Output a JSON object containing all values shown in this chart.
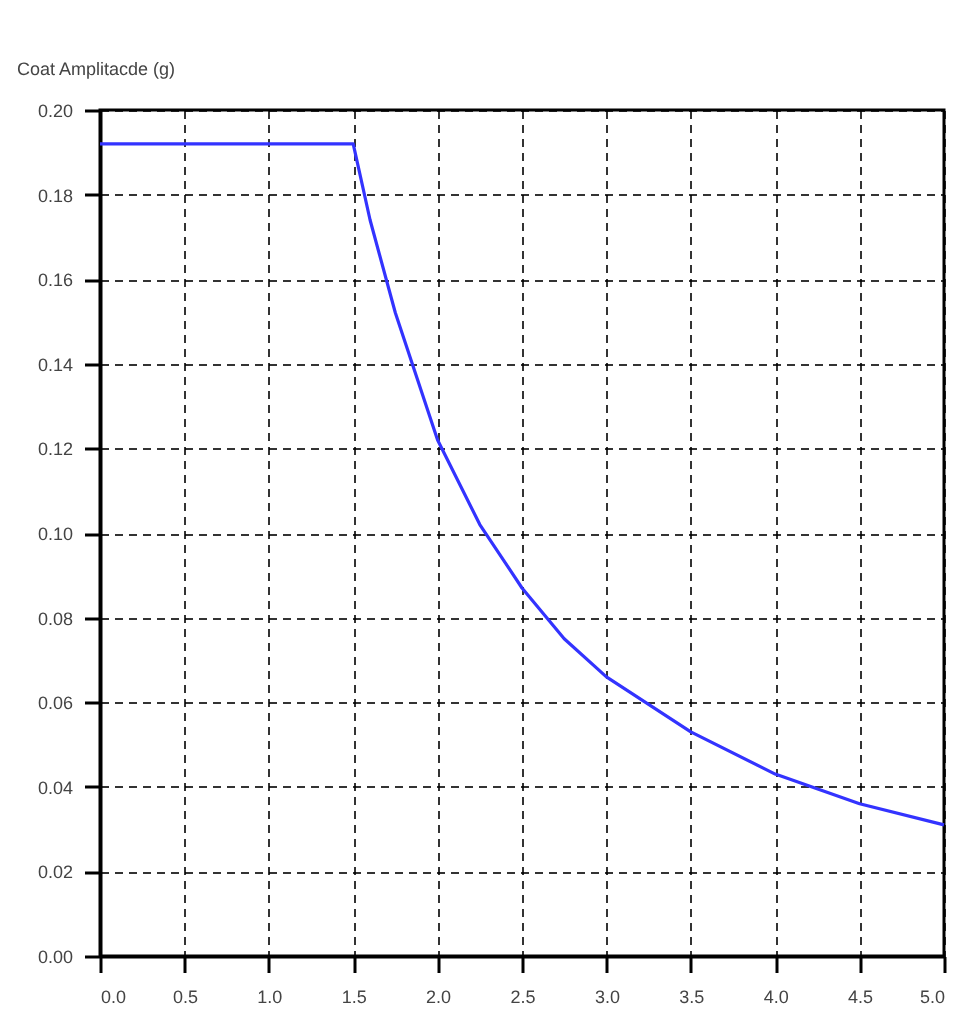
{
  "chart_data": {
    "type": "line",
    "ylabel": "Coat Amplitacde (g)",
    "x": [
      0,
      1.5,
      1.6,
      1.75,
      2,
      2.25,
      2.5,
      2.75,
      3,
      3.5,
      4,
      4.5,
      5
    ],
    "series": [
      {
        "color": "#3333ff",
        "values": [
          0.192,
          0.192,
          0.174,
          0.152,
          0.122,
          0.102,
          0.087,
          0.075,
          0.066,
          0.053,
          0.043,
          0.036,
          0.031
        ]
      }
    ],
    "xlim": [
      0,
      5
    ],
    "ylim": [
      0,
      0.2
    ],
    "xticks": [
      {
        "value": 0,
        "label": "0.0"
      },
      {
        "value": 0.5,
        "label": "0.5"
      },
      {
        "value": 1,
        "label": "1.0"
      },
      {
        "value": 1.5,
        "label": "1.5"
      },
      {
        "value": 2,
        "label": "2.0"
      },
      {
        "value": 2.5,
        "label": "2.5"
      },
      {
        "value": 3,
        "label": "3.0"
      },
      {
        "value": 3.5,
        "label": "3.5"
      },
      {
        "value": 4,
        "label": "4.0"
      },
      {
        "value": 4.5,
        "label": "4.5"
      },
      {
        "value": 5,
        "label": "5.0"
      }
    ],
    "yticks": [
      {
        "value": 0,
        "label": "0.00"
      },
      {
        "value": 0.02,
        "label": "0.02"
      },
      {
        "value": 0.04,
        "label": "0.04"
      },
      {
        "value": 0.06,
        "label": "0.06"
      },
      {
        "value": 0.08,
        "label": "0.08"
      },
      {
        "value": 0.1,
        "label": "0.10"
      },
      {
        "value": 0.12,
        "label": "0.12"
      },
      {
        "value": 0.14,
        "label": "0.14"
      },
      {
        "value": 0.16,
        "label": "0.16"
      },
      {
        "value": 0.18,
        "label": "0.18"
      },
      {
        "value": 0.2,
        "label": "0.20"
      }
    ],
    "grid": true,
    "line_style": "solid",
    "marker": "none"
  }
}
